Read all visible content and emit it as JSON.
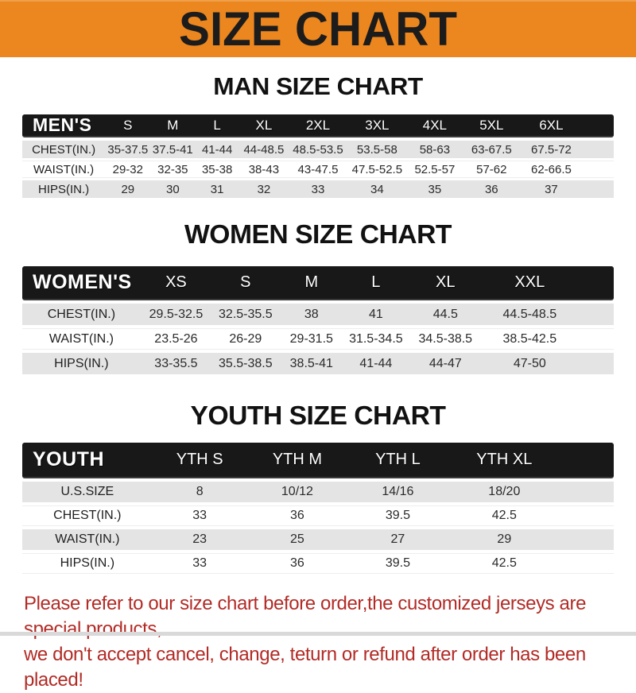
{
  "page": {
    "title": "SIZE CHART",
    "note_line1": "Please refer to our size chart before order,the customized jerseys are special products,",
    "note_line2": "we don't accept cancel, change, teturn or refund after order has been placed!"
  },
  "colors": {
    "header_bg": "#EC861E",
    "bar_bg": "#181818",
    "row_gray": "#E4E4E4",
    "note_red": "#B22B26"
  },
  "sections": [
    {
      "heading": "MAN SIZE CHART",
      "corner_label": "MEN'S",
      "columns": [
        "S",
        "M",
        "L",
        "XL",
        "2XL",
        "3XL",
        "4XL",
        "5XL",
        "6XL"
      ],
      "rows": [
        {
          "label": "CHEST(IN.)",
          "values": [
            "35-37.5",
            "37.5-41",
            "41-44",
            "44-48.5",
            "48.5-53.5",
            "53.5-58",
            "58-63",
            "63-67.5",
            "67.5-72"
          ]
        },
        {
          "label": "WAIST(IN.)",
          "values": [
            "29-32",
            "32-35",
            "35-38",
            "38-43",
            "43-47.5",
            "47.5-52.5",
            "52.5-57",
            "57-62",
            "62-66.5"
          ]
        },
        {
          "label": "HIPS(IN.)",
          "values": [
            "29",
            "30",
            "31",
            "32",
            "33",
            "34",
            "35",
            "36",
            "37"
          ]
        }
      ]
    },
    {
      "heading": "WOMEN SIZE CHART",
      "corner_label": "WOMEN'S",
      "columns": [
        "XS",
        "S",
        "M",
        "L",
        "XL",
        "XXL"
      ],
      "rows": [
        {
          "label": "CHEST(IN.)",
          "values": [
            "29.5-32.5",
            "32.5-35.5",
            "38",
            "41",
            "44.5",
            "44.5-48.5"
          ]
        },
        {
          "label": "WAIST(IN.)",
          "values": [
            "23.5-26",
            "26-29",
            "29-31.5",
            "31.5-34.5",
            "34.5-38.5",
            "38.5-42.5"
          ]
        },
        {
          "label": "HIPS(IN.)",
          "values": [
            "33-35.5",
            "35.5-38.5",
            "38.5-41",
            "41-44",
            "44-47",
            "47-50"
          ]
        }
      ]
    },
    {
      "heading": "YOUTH SIZE CHART",
      "corner_label": "YOUTH",
      "columns": [
        "YTH S",
        "YTH M",
        "YTH L",
        "YTH XL"
      ],
      "rows": [
        {
          "label": "U.S.SIZE",
          "values": [
            "8",
            "10/12",
            "14/16",
            "18/20"
          ]
        },
        {
          "label": "CHEST(IN.)",
          "values": [
            "33",
            "36",
            "39.5",
            "42.5"
          ]
        },
        {
          "label": "WAIST(IN.)",
          "values": [
            "23",
            "25",
            "27",
            "29"
          ]
        },
        {
          "label": "HIPS(IN.)",
          "values": [
            "33",
            "36",
            "39.5",
            "42.5"
          ]
        }
      ]
    }
  ]
}
